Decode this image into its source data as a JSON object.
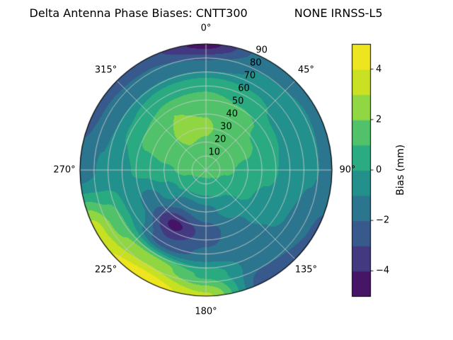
{
  "figure": {
    "title": "Delta Antenna Phase Biases: CNTT300             NONE IRNSS-L5"
  },
  "polar_axis": {
    "angular_tick_labels": [
      {
        "angle_deg": 0,
        "label": "0°"
      },
      {
        "angle_deg": 45,
        "label": "45°"
      },
      {
        "angle_deg": 90,
        "label": "90°"
      },
      {
        "angle_deg": 135,
        "label": "135°"
      },
      {
        "angle_deg": 180,
        "label": "180°"
      },
      {
        "angle_deg": 225,
        "label": "225°"
      },
      {
        "angle_deg": 270,
        "label": "270°"
      },
      {
        "angle_deg": 315,
        "label": "315°"
      }
    ],
    "radial_tick_labels": [
      {
        "radius": 10,
        "label": "10"
      },
      {
        "radius": 20,
        "label": "20"
      },
      {
        "radius": 30,
        "label": "30"
      },
      {
        "radius": 40,
        "label": "40"
      },
      {
        "radius": 50,
        "label": "50"
      },
      {
        "radius": 60,
        "label": "60"
      },
      {
        "radius": 70,
        "label": "70"
      },
      {
        "radius": 80,
        "label": "80"
      },
      {
        "radius": 90,
        "label": "90"
      }
    ]
  },
  "colorbar": {
    "label": "Bias (mm)",
    "vmin": -5,
    "vmax": 5,
    "tick_labels": [
      {
        "value": 4,
        "label": "4"
      },
      {
        "value": 2,
        "label": "2"
      },
      {
        "value": 0,
        "label": "0"
      },
      {
        "value": -2,
        "label": "−2"
      },
      {
        "value": -4,
        "label": "−4"
      }
    ]
  },
  "chart_data": {
    "type": "heatmap",
    "projection": "polar",
    "title": "Delta Antenna Phase Biases: CNTT300             NONE IRNSS-L5",
    "value_label": "Bias (mm)",
    "units": "mm",
    "colormap": "viridis",
    "colormap_stops": [
      "#440154",
      "#482878",
      "#3e4a89",
      "#31688e",
      "#26828e",
      "#1f9e89",
      "#35b779",
      "#6dcd59",
      "#b4de2c",
      "#dde318",
      "#fde725"
    ],
    "vmin": -5,
    "vmax": 5,
    "level_step": 1,
    "theta_zero_location": "top",
    "theta_direction": "clockwise",
    "grid": true,
    "grid_color": "#c9c9c9",
    "azimuth_deg": [
      0,
      30,
      60,
      90,
      120,
      150,
      180,
      210,
      240,
      270,
      300,
      330
    ],
    "radius_deg": [
      0,
      15,
      30,
      45,
      60,
      75,
      90
    ],
    "values_mm": [
      [
        1.4,
        1.4,
        1.4,
        1.4,
        1.4,
        1.4,
        1.4,
        1.4,
        1.4,
        1.4,
        1.4,
        1.4
      ],
      [
        1.8,
        1.6,
        1.3,
        1.1,
        0.9,
        0.4,
        0.2,
        0.3,
        0.8,
        1.2,
        1.6,
        1.9
      ],
      [
        2.1,
        1.7,
        1.2,
        0.8,
        0.3,
        -0.6,
        -1.4,
        -1.8,
        -0.6,
        0.8,
        1.7,
        2.2
      ],
      [
        1.9,
        1.4,
        0.8,
        0.3,
        -0.3,
        -1.2,
        -2.6,
        -4.3,
        -1.6,
        0.3,
        1.4,
        2.0
      ],
      [
        0.8,
        0.3,
        -0.2,
        -0.4,
        -0.8,
        -1.4,
        -1.8,
        -2.6,
        -0.2,
        -0.2,
        0.1,
        0.7
      ],
      [
        -1.6,
        -0.9,
        -0.9,
        -0.9,
        -1.3,
        -1.6,
        0.8,
        2.6,
        1.8,
        -0.9,
        -1.3,
        -1.4
      ],
      [
        -4.4,
        -1.4,
        -1.1,
        -1.2,
        -2.2,
        -3.0,
        3.2,
        4.8,
        3.6,
        -1.6,
        -2.4,
        -2.6
      ]
    ]
  }
}
